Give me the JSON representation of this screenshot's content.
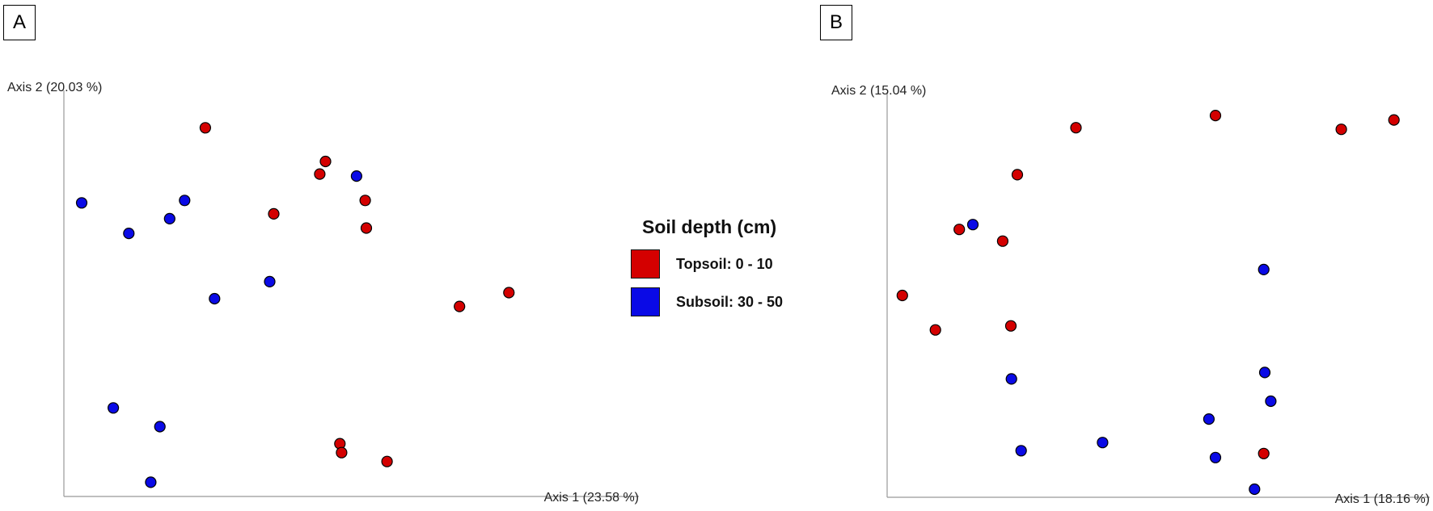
{
  "panels": {
    "a_label": "A",
    "b_label": "B"
  },
  "legend": {
    "title": "Soil depth (cm)",
    "items": [
      {
        "label": "Topsoil: 0 - 10",
        "color": "#d40000"
      },
      {
        "label": "Subsoil: 30 - 50",
        "color": "#0a0ae6"
      }
    ]
  },
  "chart_data": [
    {
      "type": "scatter",
      "panel": "A",
      "xlabel": "Axis 1 (23.58 %)",
      "ylabel": "Axis 2 (20.03 %)",
      "xlim": [
        0,
        100
      ],
      "ylim": [
        0,
        100
      ],
      "grid": false,
      "series": [
        {
          "name": "Topsoil: 0 - 10",
          "color": "#d40000",
          "points": [
            [
              24.6,
              90.8
            ],
            [
              45.5,
              82.5
            ],
            [
              44.5,
              79.4
            ],
            [
              52.4,
              72.9
            ],
            [
              36.5,
              69.6
            ],
            [
              52.6,
              66.1
            ],
            [
              77.4,
              50.2
            ],
            [
              68.8,
              46.8
            ],
            [
              48.0,
              13.0
            ],
            [
              48.3,
              10.8
            ],
            [
              56.2,
              8.6
            ]
          ]
        },
        {
          "name": "Subsoil: 30 - 50",
          "color": "#0a0ae6",
          "points": [
            [
              3.1,
              72.3
            ],
            [
              21.0,
              72.9
            ],
            [
              18.4,
              68.4
            ],
            [
              11.3,
              64.8
            ],
            [
              50.9,
              78.9
            ],
            [
              35.8,
              52.9
            ],
            [
              26.2,
              48.7
            ],
            [
              8.6,
              21.8
            ],
            [
              16.7,
              17.2
            ],
            [
              15.1,
              3.5
            ]
          ]
        }
      ]
    },
    {
      "type": "scatter",
      "panel": "B",
      "xlabel": "Axis 1 (18.16 %)",
      "ylabel": "Axis 2 (15.04 %)",
      "xlim": [
        0,
        100
      ],
      "ylim": [
        0,
        100
      ],
      "grid": false,
      "series": [
        {
          "name": "Topsoil: 0 - 10",
          "color": "#d40000",
          "points": [
            [
              34.8,
              91.2
            ],
            [
              60.5,
              94.2
            ],
            [
              83.7,
              90.8
            ],
            [
              93.4,
              93.1
            ],
            [
              24.0,
              79.6
            ],
            [
              13.3,
              66.1
            ],
            [
              21.3,
              63.2
            ],
            [
              2.8,
              49.8
            ],
            [
              8.9,
              41.3
            ],
            [
              22.8,
              42.3
            ],
            [
              69.4,
              10.8
            ]
          ]
        },
        {
          "name": "Subsoil: 30 - 50",
          "color": "#0a0ae6",
          "points": [
            [
              15.8,
              67.3
            ],
            [
              69.4,
              56.2
            ],
            [
              22.9,
              29.2
            ],
            [
              69.6,
              30.8
            ],
            [
              70.7,
              23.7
            ],
            [
              59.3,
              19.3
            ],
            [
              24.7,
              11.5
            ],
            [
              39.7,
              13.5
            ],
            [
              60.5,
              9.8
            ],
            [
              67.7,
              2.0
            ]
          ]
        }
      ]
    }
  ]
}
